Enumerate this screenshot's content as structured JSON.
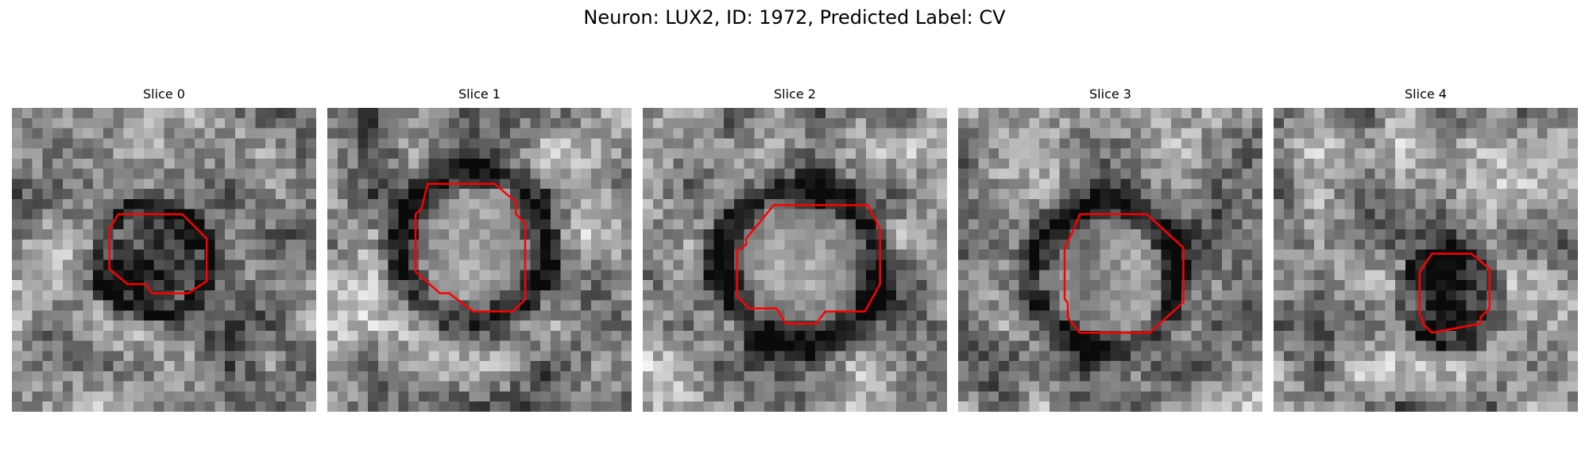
{
  "figure": {
    "title": "Neuron: LUX2, ID: 1972, Predicted Label: CV",
    "contour_color": "#ff0000"
  },
  "panels": [
    {
      "title": "Slice 0",
      "image": "grayscale-microscopy-patch",
      "contour": [
        [
          0.35,
          0.35
        ],
        [
          0.56,
          0.35
        ],
        [
          0.64,
          0.43
        ],
        [
          0.64,
          0.57
        ],
        [
          0.58,
          0.61
        ],
        [
          0.46,
          0.61
        ],
        [
          0.44,
          0.58
        ],
        [
          0.38,
          0.58
        ],
        [
          0.32,
          0.53
        ],
        [
          0.32,
          0.4
        ]
      ]
    },
    {
      "title": "Slice 1",
      "image": "grayscale-microscopy-patch",
      "contour": [
        [
          0.33,
          0.25
        ],
        [
          0.55,
          0.25
        ],
        [
          0.62,
          0.31
        ],
        [
          0.62,
          0.35
        ],
        [
          0.65,
          0.38
        ],
        [
          0.65,
          0.63
        ],
        [
          0.61,
          0.67
        ],
        [
          0.48,
          0.67
        ],
        [
          0.4,
          0.61
        ],
        [
          0.37,
          0.61
        ],
        [
          0.29,
          0.54
        ],
        [
          0.29,
          0.35
        ],
        [
          0.31,
          0.33
        ]
      ]
    },
    {
      "title": "Slice 2",
      "image": "grayscale-microscopy-patch",
      "contour": [
        [
          0.43,
          0.32
        ],
        [
          0.74,
          0.32
        ],
        [
          0.74,
          0.32
        ],
        [
          0.78,
          0.4
        ],
        [
          0.78,
          0.58
        ],
        [
          0.73,
          0.67
        ],
        [
          0.6,
          0.67
        ],
        [
          0.57,
          0.71
        ],
        [
          0.47,
          0.71
        ],
        [
          0.44,
          0.66
        ],
        [
          0.35,
          0.66
        ],
        [
          0.31,
          0.62
        ],
        [
          0.31,
          0.47
        ],
        [
          0.34,
          0.45
        ],
        [
          0.34,
          0.43
        ],
        [
          0.39,
          0.37
        ]
      ]
    },
    {
      "title": "Slice 3",
      "image": "grayscale-microscopy-patch",
      "contour": [
        [
          0.4,
          0.35
        ],
        [
          0.62,
          0.35
        ],
        [
          0.74,
          0.46
        ],
        [
          0.74,
          0.64
        ],
        [
          0.63,
          0.74
        ],
        [
          0.4,
          0.74
        ],
        [
          0.36,
          0.69
        ],
        [
          0.36,
          0.64
        ],
        [
          0.35,
          0.63
        ],
        [
          0.35,
          0.46
        ],
        [
          0.38,
          0.4
        ]
      ]
    },
    {
      "title": "Slice 4",
      "image": "grayscale-microscopy-patch",
      "contour": [
        [
          0.52,
          0.48
        ],
        [
          0.65,
          0.48
        ],
        [
          0.71,
          0.53
        ],
        [
          0.71,
          0.66
        ],
        [
          0.68,
          0.69
        ],
        [
          0.68,
          0.71
        ],
        [
          0.52,
          0.74
        ],
        [
          0.49,
          0.71
        ],
        [
          0.49,
          0.7
        ],
        [
          0.48,
          0.68
        ],
        [
          0.48,
          0.54
        ]
      ]
    }
  ]
}
